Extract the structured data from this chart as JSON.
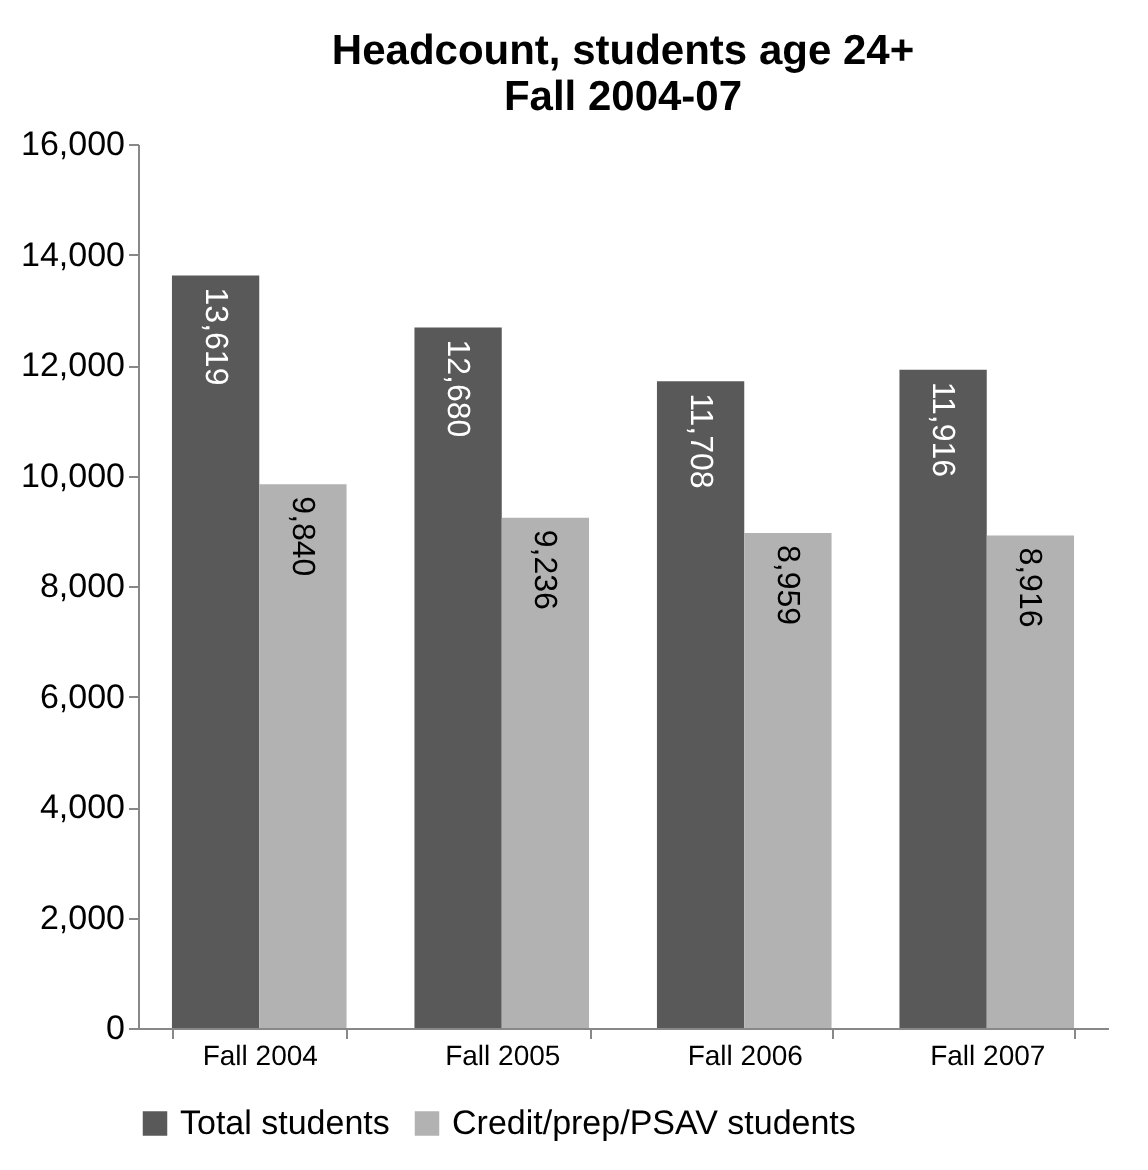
{
  "chart_data": {
    "type": "bar",
    "title": [
      "Headcount, students age 24+",
      "Fall 2004-07"
    ],
    "categories": [
      "Fall 2004",
      "Fall 2005",
      "Fall 2006",
      "Fall 2007"
    ],
    "series": [
      {
        "name": "Total students",
        "color": "#595959",
        "values": [
          13619,
          12680,
          11708,
          11916
        ],
        "value_labels": [
          "13,619",
          "12,680",
          "11,708",
          "11,916"
        ]
      },
      {
        "name": "Credit/prep/PSAV students",
        "color": "#b2b2b2",
        "values": [
          9840,
          9236,
          8959,
          8916
        ],
        "value_labels": [
          "9,840",
          "9,236",
          "8,959",
          "8,916"
        ]
      }
    ],
    "ylim": [
      0,
      16000
    ],
    "yticks": [
      {
        "value": 0,
        "label": "0"
      },
      {
        "value": 2000,
        "label": "2,000"
      },
      {
        "value": 4000,
        "label": "4,000"
      },
      {
        "value": 6000,
        "label": "6,000"
      },
      {
        "value": 8000,
        "label": "8,000"
      },
      {
        "value": 10000,
        "label": "10,000"
      },
      {
        "value": 12000,
        "label": "12,000"
      },
      {
        "value": 14000,
        "label": "14,000"
      },
      {
        "value": 16000,
        "label": "16,000"
      }
    ],
    "grid": false,
    "legend": "bottom"
  }
}
